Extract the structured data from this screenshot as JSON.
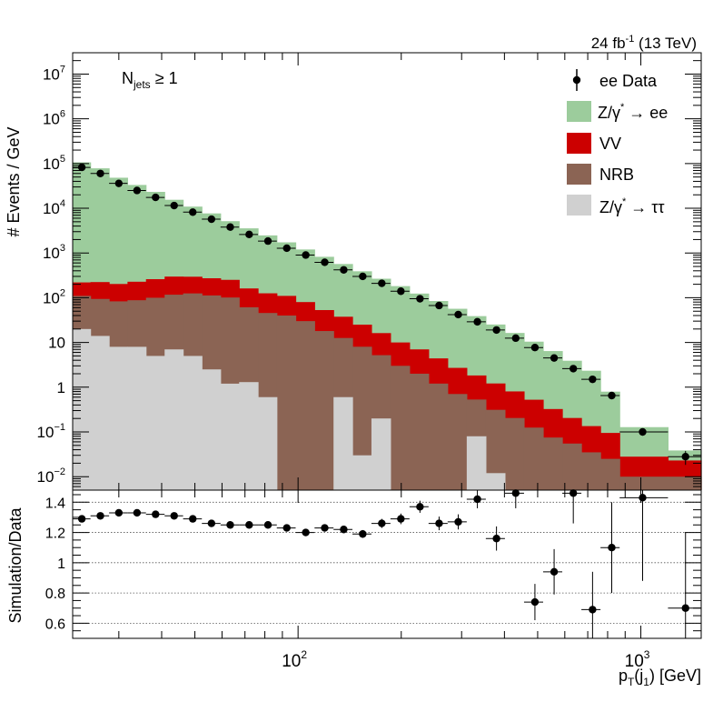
{
  "chart_data": {
    "type": "bar",
    "header": "24 fb⁻¹ (13 TeV)",
    "header_lumi": "24 fb",
    "header_sup": "-1",
    "header_energy": "(13 TeV)",
    "annotation": "N_jets ≥ 1",
    "annotation_main": "N",
    "annotation_sub": "jets",
    "annotation_rel": "≥ 1",
    "ylabel": "# Events / GeV",
    "ratio_ylabel": "Simulation/Data",
    "xlabel": "p_T(j_1) [GeV]",
    "xlabel_p": "p",
    "xlabel_sub1": "T",
    "xlabel_mid": "(j",
    "xlabel_sub2": "1",
    "xlabel_end": ") [GeV]",
    "x_scale": "log",
    "xlim": [
      22,
      1500
    ],
    "y_scale": "log",
    "ylim": [
      0.005,
      30000000
    ],
    "ratio_ylim": [
      0.5,
      1.48
    ],
    "legend_position": "top-right",
    "x_ticks": [
      {
        "value": 100,
        "label": "10",
        "exp": "2"
      },
      {
        "value": 1000,
        "label": "10",
        "exp": "3"
      }
    ],
    "y_ticks": [
      {
        "value": 0.01,
        "label": "10",
        "exp": "−2"
      },
      {
        "value": 0.1,
        "label": "10",
        "exp": "−1"
      },
      {
        "value": 1,
        "label": "1",
        "exp": ""
      },
      {
        "value": 10,
        "label": "10",
        "exp": ""
      },
      {
        "value": 100,
        "label": "10",
        "exp": "2"
      },
      {
        "value": 1000,
        "label": "10",
        "exp": "3"
      },
      {
        "value": 10000,
        "label": "10",
        "exp": "4"
      },
      {
        "value": 100000,
        "label": "10",
        "exp": "5"
      },
      {
        "value": 1000000,
        "label": "10",
        "exp": "6"
      },
      {
        "value": 10000000,
        "label": "10",
        "exp": "7"
      }
    ],
    "ratio_ticks": [
      {
        "value": 0.6,
        "label": "0.6"
      },
      {
        "value": 0.8,
        "label": "0.8"
      },
      {
        "value": 1.0,
        "label": "1"
      },
      {
        "value": 1.2,
        "label": "1.2"
      },
      {
        "value": 1.4,
        "label": "1.4"
      }
    ],
    "bin_edges": [
      22,
      24.8,
      28.1,
      31.8,
      36,
      40.8,
      46.2,
      52.4,
      59.4,
      67.3,
      76.4,
      86.7,
      98.4,
      111.7,
      126.9,
      144.1,
      163.7,
      186,
      211.4,
      240.3,
      273.1,
      310.5,
      353,
      401.3,
      456.3,
      518.8,
      589.9,
      670.7,
      762.6,
      867.2,
      1200,
      1500
    ],
    "series": [
      {
        "name": "Z/γ* → ττ",
        "legend_main": "Z/γ",
        "legend_sup": "*",
        "legend_rest": " → ττ",
        "color": "#d0d0d0",
        "values": [
          20,
          14,
          8,
          8,
          5,
          7,
          5,
          2.5,
          1.2,
          1.3,
          0.6,
          0.005,
          0.005,
          0.005,
          0.6,
          0.03,
          0.2,
          0.005,
          0.005,
          0.005,
          0.005,
          0.08,
          0.012,
          0.005,
          0.005,
          0.005,
          0.005,
          0.005,
          0.005,
          0.005,
          0.005
        ]
      },
      {
        "name": "NRB",
        "legend_main": "NRB",
        "legend_sup": "",
        "legend_rest": "",
        "color": "#8b6454",
        "values": [
          90,
          80,
          75,
          80,
          95,
          110,
          120,
          110,
          100,
          60,
          45,
          40,
          30,
          18,
          12,
          8,
          5,
          3,
          2,
          1.2,
          0.7,
          0.45,
          0.3,
          0.2,
          0.12,
          0.07,
          0.05,
          0.03,
          0.02,
          0.005,
          0.005
        ]
      },
      {
        "name": "VV",
        "legend_main": "VV",
        "legend_sup": "",
        "legend_rest": "",
        "color": "#cc0000",
        "values": [
          110,
          130,
          120,
          140,
          160,
          180,
          170,
          160,
          150,
          100,
          80,
          70,
          50,
          35,
          25,
          17,
          11,
          7,
          5,
          3.2,
          2,
          1.3,
          0.9,
          0.6,
          0.4,
          0.25,
          0.15,
          0.1,
          0.07,
          0.018,
          0.013
        ]
      },
      {
        "name": "Z/γ* → ee",
        "legend_main": "Z/γ",
        "legend_sup": "*",
        "legend_rest": " → ee",
        "color": "#9ccc9c",
        "values": [
          106000,
          78000,
          48000,
          33000,
          23000,
          15200,
          10600,
          7400,
          4900,
          3400,
          2350,
          1620,
          1120,
          770,
          530,
          365,
          250,
          172,
          117,
          80,
          54,
          37,
          24,
          15.5,
          9.9,
          6.1,
          3.7,
          2.2,
          0.7,
          0.1,
          0.0155
        ]
      }
    ],
    "data": {
      "name": "ee Data",
      "legend_main": "ee Data",
      "color": "#000000",
      "x": [
        23.4,
        26.5,
        30,
        33.9,
        38.4,
        43.5,
        49.3,
        55.9,
        63.4,
        72,
        81.7,
        92.7,
        105.3,
        119.6,
        135.9,
        154.4,
        175.5,
        199.5,
        226.8,
        257.9,
        293.3,
        333.5,
        379.2,
        431.5,
        490.9,
        558.5,
        635.3,
        723,
        822.4,
        1012,
        1350
      ],
      "y": [
        82000,
        60000,
        36000,
        25000,
        17500,
        11500,
        8200,
        5700,
        3800,
        2600,
        1850,
        1280,
        900,
        620,
        420,
        300,
        210,
        140,
        95,
        67,
        42,
        29,
        19,
        12.5,
        7.7,
        4.5,
        2.6,
        1.5,
        0.65,
        0.1,
        0.028
      ],
      "ratio": [
        1.29,
        1.31,
        1.33,
        1.33,
        1.32,
        1.31,
        1.29,
        1.26,
        1.25,
        1.25,
        1.25,
        1.23,
        1.2,
        1.23,
        1.22,
        1.19,
        1.26,
        1.29,
        1.37,
        1.26,
        1.27,
        1.42,
        1.16,
        1.46,
        0.74,
        0.94,
        1.46,
        0.69,
        1.1,
        1.43,
        0.7
      ],
      "ratio_err": [
        0.01,
        0.01,
        0.01,
        0.01,
        0.01,
        0.01,
        0.01,
        0.01,
        0.01,
        0.01,
        0.012,
        0.014,
        0.016,
        0.018,
        0.022,
        0.026,
        0.03,
        0.035,
        0.04,
        0.045,
        0.05,
        0.06,
        0.08,
        0.1,
        0.12,
        0.15,
        0.2,
        0.25,
        0.3,
        0.55,
        0.5
      ]
    }
  }
}
